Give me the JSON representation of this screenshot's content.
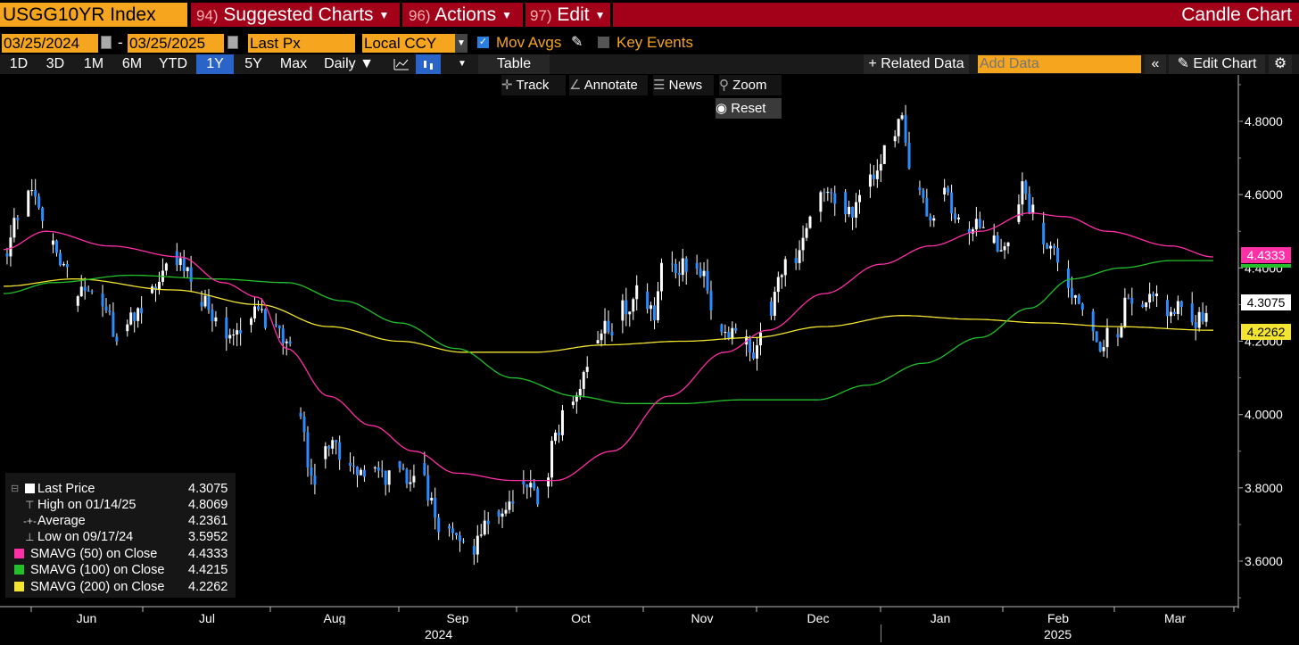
{
  "header": {
    "ticker": "USGG10YR Index",
    "menus": [
      {
        "num": "94)",
        "label": "Suggested Charts"
      },
      {
        "num": "96)",
        "label": "Actions"
      },
      {
        "num": "97)",
        "label": "Edit"
      }
    ],
    "chart_type": "Candle Chart"
  },
  "controls": {
    "start_date": "03/25/2024",
    "dash": "-",
    "end_date": "03/25/2025",
    "field": "Last Px",
    "currency": "Local CCY",
    "mov_avgs": "Mov Avgs",
    "key_events": "Key Events",
    "mov_avgs_checked": true,
    "key_events_checked": false
  },
  "toolbar": {
    "ranges": [
      "1D",
      "3D",
      "1M",
      "6M",
      "YTD",
      "1Y",
      "5Y",
      "Max"
    ],
    "selected_range": "1Y",
    "frequency": "Daily",
    "table": "Table",
    "related": "+ Related Data",
    "add_data_placeholder": "Add Data",
    "edit_chart": "Edit Chart"
  },
  "chart_tools": {
    "track": "Track",
    "annotate": "Annotate",
    "news": "News",
    "zoom": "Zoom",
    "reset": "Reset"
  },
  "legend": {
    "rows": [
      {
        "label": "Last Price",
        "value": "4.3075"
      },
      {
        "label": "High on 01/14/25",
        "value": "4.8069"
      },
      {
        "label": "Average",
        "value": "4.2361"
      },
      {
        "label": "Low on 09/17/24",
        "value": "3.5952"
      },
      {
        "label": "SMAVG (50)  on Close",
        "value": "4.4333"
      },
      {
        "label": "SMAVG (100)  on Close",
        "value": "4.4215"
      },
      {
        "label": "SMAVG (200)  on Close",
        "value": "4.2262"
      }
    ]
  },
  "colors": {
    "sma50": "#ff2fa6",
    "sma100": "#22c02a",
    "sma200": "#f2e431",
    "candle_up": "#ffffff",
    "candle_down": "#2a8cff",
    "accent": "#f5a51e",
    "header_red": "#a3001a"
  },
  "tags": {
    "sma50": "4.4333",
    "sma100": "4.4215",
    "last": "4.3075",
    "sma200": "4.2262"
  },
  "chart_data": {
    "type": "candlestick",
    "ylim": [
      3.45,
      4.92
    ],
    "y_ticks": [
      3.6,
      3.8,
      4.0,
      4.2,
      4.4,
      4.6,
      4.8
    ],
    "y_tick_labels": [
      "3.6000",
      "3.8000",
      "4.0000",
      "4.2000",
      "4.4000",
      "4.6000",
      "4.8000"
    ],
    "x_months": [
      "Jun",
      "Jul",
      "Aug",
      "Sep",
      "Oct",
      "Nov",
      "Dec",
      "Jan",
      "Feb",
      "Mar"
    ],
    "x_years": [
      "2024",
      "2025"
    ],
    "close_anchors": [
      [
        0,
        4.43
      ],
      [
        4,
        4.52
      ],
      [
        8,
        4.6
      ],
      [
        10,
        4.55
      ],
      [
        14,
        4.47
      ],
      [
        18,
        4.38
      ],
      [
        20,
        4.32
      ],
      [
        24,
        4.35
      ],
      [
        28,
        4.3
      ],
      [
        32,
        4.22
      ],
      [
        36,
        4.25
      ],
      [
        40,
        4.3
      ],
      [
        44,
        4.36
      ],
      [
        48,
        4.44
      ],
      [
        52,
        4.39
      ],
      [
        56,
        4.3
      ],
      [
        60,
        4.28
      ],
      [
        64,
        4.23
      ],
      [
        68,
        4.24
      ],
      [
        72,
        4.28
      ],
      [
        76,
        4.25
      ],
      [
        80,
        4.2
      ],
      [
        84,
        3.97
      ],
      [
        88,
        3.8
      ],
      [
        92,
        3.92
      ],
      [
        96,
        3.87
      ],
      [
        100,
        3.83
      ],
      [
        104,
        3.88
      ],
      [
        108,
        3.82
      ],
      [
        112,
        3.86
      ],
      [
        116,
        3.82
      ],
      [
        118,
        3.85
      ],
      [
        120,
        3.76
      ],
      [
        124,
        3.7
      ],
      [
        128,
        3.66
      ],
      [
        132,
        3.63
      ],
      [
        136,
        3.7
      ],
      [
        140,
        3.73
      ],
      [
        144,
        3.78
      ],
      [
        148,
        3.8
      ],
      [
        152,
        3.76
      ],
      [
        154,
        3.85
      ],
      [
        156,
        3.96
      ],
      [
        160,
        4.05
      ],
      [
        164,
        4.1
      ],
      [
        168,
        4.22
      ],
      [
        172,
        4.24
      ],
      [
        176,
        4.29
      ],
      [
        180,
        4.33
      ],
      [
        184,
        4.27
      ],
      [
        186,
        4.4
      ],
      [
        190,
        4.4
      ],
      [
        194,
        4.42
      ],
      [
        198,
        4.38
      ],
      [
        200,
        4.28
      ],
      [
        204,
        4.22
      ],
      [
        208,
        4.2
      ],
      [
        212,
        4.18
      ],
      [
        216,
        4.28
      ],
      [
        220,
        4.4
      ],
      [
        224,
        4.4
      ],
      [
        228,
        4.53
      ],
      [
        232,
        4.6
      ],
      [
        236,
        4.6
      ],
      [
        240,
        4.55
      ],
      [
        244,
        4.62
      ],
      [
        248,
        4.7
      ],
      [
        252,
        4.77
      ],
      [
        254,
        4.8
      ],
      [
        256,
        4.66
      ],
      [
        258,
        4.6
      ],
      [
        262,
        4.55
      ],
      [
        266,
        4.62
      ],
      [
        270,
        4.53
      ],
      [
        274,
        4.52
      ],
      [
        278,
        4.5
      ],
      [
        282,
        4.44
      ],
      [
        286,
        4.52
      ],
      [
        288,
        4.62
      ],
      [
        292,
        4.53
      ],
      [
        294,
        4.48
      ],
      [
        298,
        4.42
      ],
      [
        302,
        4.32
      ],
      [
        306,
        4.28
      ],
      [
        310,
        4.2
      ],
      [
        314,
        4.23
      ],
      [
        318,
        4.3
      ],
      [
        322,
        4.28
      ],
      [
        326,
        4.32
      ],
      [
        330,
        4.27
      ],
      [
        334,
        4.3
      ],
      [
        338,
        4.25
      ],
      [
        342,
        4.31
      ]
    ],
    "sma50_anchors": [
      [
        0,
        4.45
      ],
      [
        12,
        4.5
      ],
      [
        30,
        4.46
      ],
      [
        50,
        4.43
      ],
      [
        62,
        4.36
      ],
      [
        72,
        4.32
      ],
      [
        80,
        4.18
      ],
      [
        92,
        4.05
      ],
      [
        104,
        3.97
      ],
      [
        116,
        3.9
      ],
      [
        128,
        3.84
      ],
      [
        144,
        3.82
      ],
      [
        156,
        3.82
      ],
      [
        172,
        3.9
      ],
      [
        188,
        4.05
      ],
      [
        204,
        4.17
      ],
      [
        216,
        4.23
      ],
      [
        232,
        4.33
      ],
      [
        248,
        4.41
      ],
      [
        262,
        4.46
      ],
      [
        276,
        4.5
      ],
      [
        290,
        4.55
      ],
      [
        300,
        4.54
      ],
      [
        312,
        4.5
      ],
      [
        330,
        4.46
      ],
      [
        342,
        4.43
      ]
    ],
    "sma100_anchors": [
      [
        0,
        4.33
      ],
      [
        14,
        4.36
      ],
      [
        36,
        4.38
      ],
      [
        60,
        4.37
      ],
      [
        80,
        4.36
      ],
      [
        96,
        4.31
      ],
      [
        112,
        4.25
      ],
      [
        128,
        4.18
      ],
      [
        144,
        4.1
      ],
      [
        162,
        4.05
      ],
      [
        176,
        4.03
      ],
      [
        192,
        4.03
      ],
      [
        208,
        4.04
      ],
      [
        230,
        4.04
      ],
      [
        244,
        4.08
      ],
      [
        260,
        4.14
      ],
      [
        276,
        4.21
      ],
      [
        290,
        4.29
      ],
      [
        302,
        4.37
      ],
      [
        316,
        4.4
      ],
      [
        330,
        4.42
      ],
      [
        342,
        4.42
      ]
    ],
    "sma200_anchors": [
      [
        0,
        4.35
      ],
      [
        20,
        4.37
      ],
      [
        48,
        4.34
      ],
      [
        72,
        4.3
      ],
      [
        92,
        4.24
      ],
      [
        112,
        4.2
      ],
      [
        130,
        4.17
      ],
      [
        150,
        4.17
      ],
      [
        170,
        4.19
      ],
      [
        192,
        4.2
      ],
      [
        212,
        4.21
      ],
      [
        232,
        4.24
      ],
      [
        254,
        4.27
      ],
      [
        274,
        4.26
      ],
      [
        294,
        4.25
      ],
      [
        314,
        4.24
      ],
      [
        342,
        4.23
      ]
    ]
  }
}
